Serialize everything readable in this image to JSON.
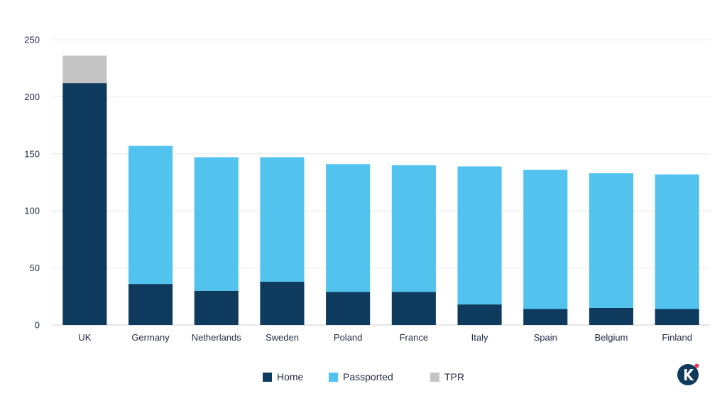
{
  "chart_data": {
    "type": "bar",
    "stacked": true,
    "categories": [
      "UK",
      "Germany",
      "Netherlands",
      "Sweden",
      "Poland",
      "France",
      "Italy",
      "Spain",
      "Belgium",
      "Finland"
    ],
    "series": [
      {
        "name": "Home",
        "color": "#0e3a5e",
        "values": [
          212,
          36,
          30,
          38,
          29,
          29,
          18,
          14,
          15,
          14
        ]
      },
      {
        "name": "Passported",
        "color": "#52c3ef",
        "values": [
          0,
          121,
          117,
          109,
          112,
          111,
          121,
          122,
          118,
          118
        ]
      },
      {
        "name": "TPR",
        "color": "#c4c4c4",
        "values": [
          24,
          0,
          0,
          0,
          0,
          0,
          0,
          0,
          0,
          0
        ]
      }
    ],
    "yticks": [
      0,
      50,
      100,
      150,
      200,
      250
    ],
    "ylim": [
      0,
      250
    ],
    "grid": true,
    "legend_position": "bottom-center"
  },
  "brand": {
    "logo_icon": "k-logo-icon",
    "logo_color": "#0e3a5e",
    "accent_color": "#e8364e"
  }
}
